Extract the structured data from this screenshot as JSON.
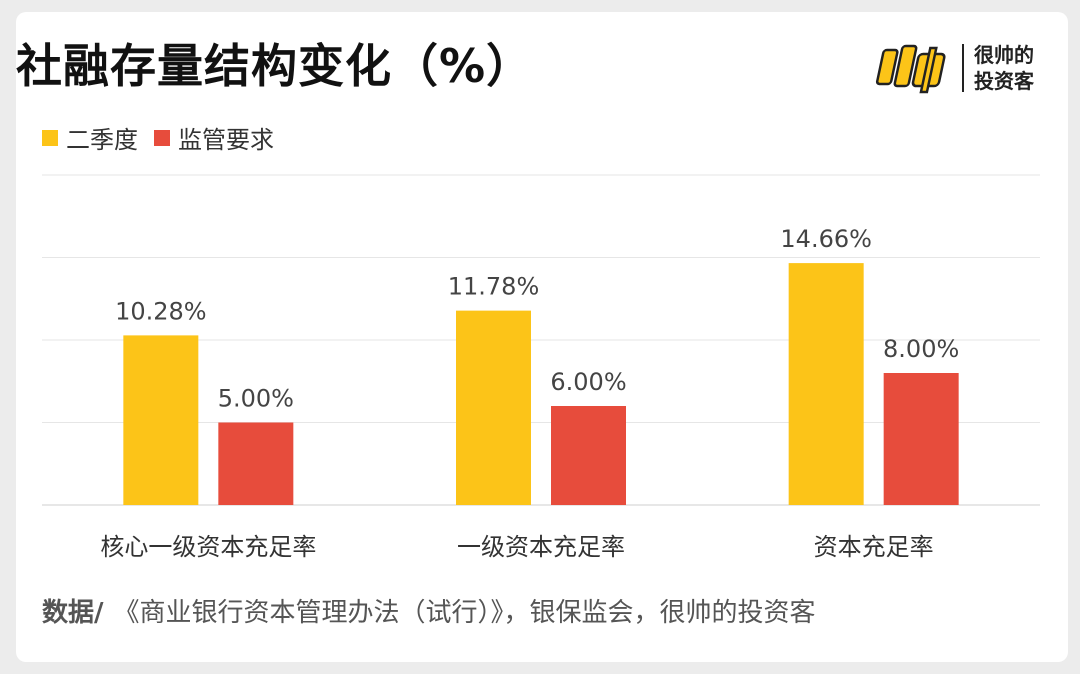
{
  "title": "社融存量结构变化（%）",
  "logo": {
    "brand_line1": "很帅的",
    "brand_line2": "投资客"
  },
  "source": {
    "label": "数据/",
    "text": "《商业银行资本管理办法（试行）》，银保监会，很帅的投资客"
  },
  "chart_data": {
    "type": "bar",
    "categories": [
      "核心一级资本充足率",
      "一级资本充足率",
      "资本充足率"
    ],
    "series": [
      {
        "name": "二季度",
        "values": [
          10.28,
          11.78,
          14.66
        ],
        "labels": [
          "10.28%",
          "11.78%",
          "14.66%"
        ],
        "color": "#FCC418"
      },
      {
        "name": "监管要求",
        "values": [
          5.0,
          6.0,
          8.0
        ],
        "labels": [
          "5.00%",
          "6.00%",
          "8.00%"
        ],
        "color": "#E74C3C"
      }
    ],
    "ylim": [
      0,
      20
    ],
    "grid": true,
    "legend_position": "top-left"
  }
}
